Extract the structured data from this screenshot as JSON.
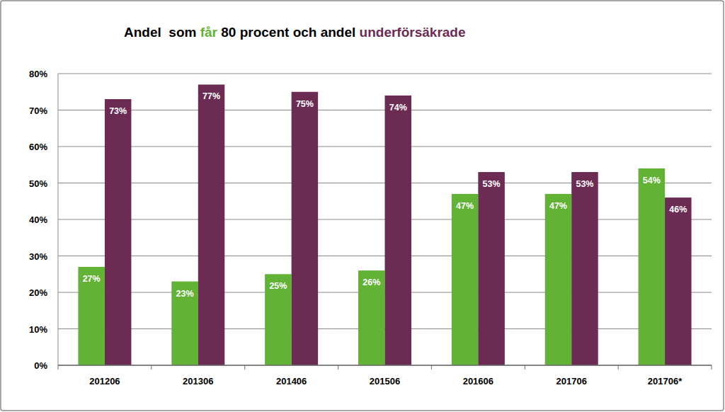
{
  "chart_data": {
    "type": "bar",
    "title": "Andel  som får 80 procent och andel underförsäkrade",
    "categories": [
      "201206",
      "201306",
      "201406",
      "201506",
      "201606",
      "201706",
      "201706*"
    ],
    "series": [
      {
        "name": "får",
        "color": "#62b236",
        "values": [
          27,
          23,
          25,
          26,
          47,
          47,
          54
        ],
        "value_labels": [
          "27%",
          "23%",
          "25%",
          "26%",
          "47%",
          "47%",
          "54%"
        ]
      },
      {
        "name": "underförsäkrade",
        "color": "#6b2b53",
        "values": [
          73,
          77,
          75,
          74,
          53,
          53,
          46
        ],
        "value_labels": [
          "73%",
          "77%",
          "75%",
          "74%",
          "53%",
          "53%",
          "46%"
        ]
      }
    ],
    "ylim": [
      0,
      80
    ],
    "yticks": [
      {
        "value": 0,
        "label": "0%"
      },
      {
        "value": 10,
        "label": "10%"
      },
      {
        "value": 20,
        "label": "20%"
      },
      {
        "value": 30,
        "label": "30%"
      },
      {
        "value": 40,
        "label": "40%"
      },
      {
        "value": 50,
        "label": "50%"
      },
      {
        "value": 60,
        "label": "60%"
      },
      {
        "value": 70,
        "label": "70%"
      },
      {
        "value": 80,
        "label": "80%"
      }
    ],
    "grid": true,
    "data_labels": true
  }
}
